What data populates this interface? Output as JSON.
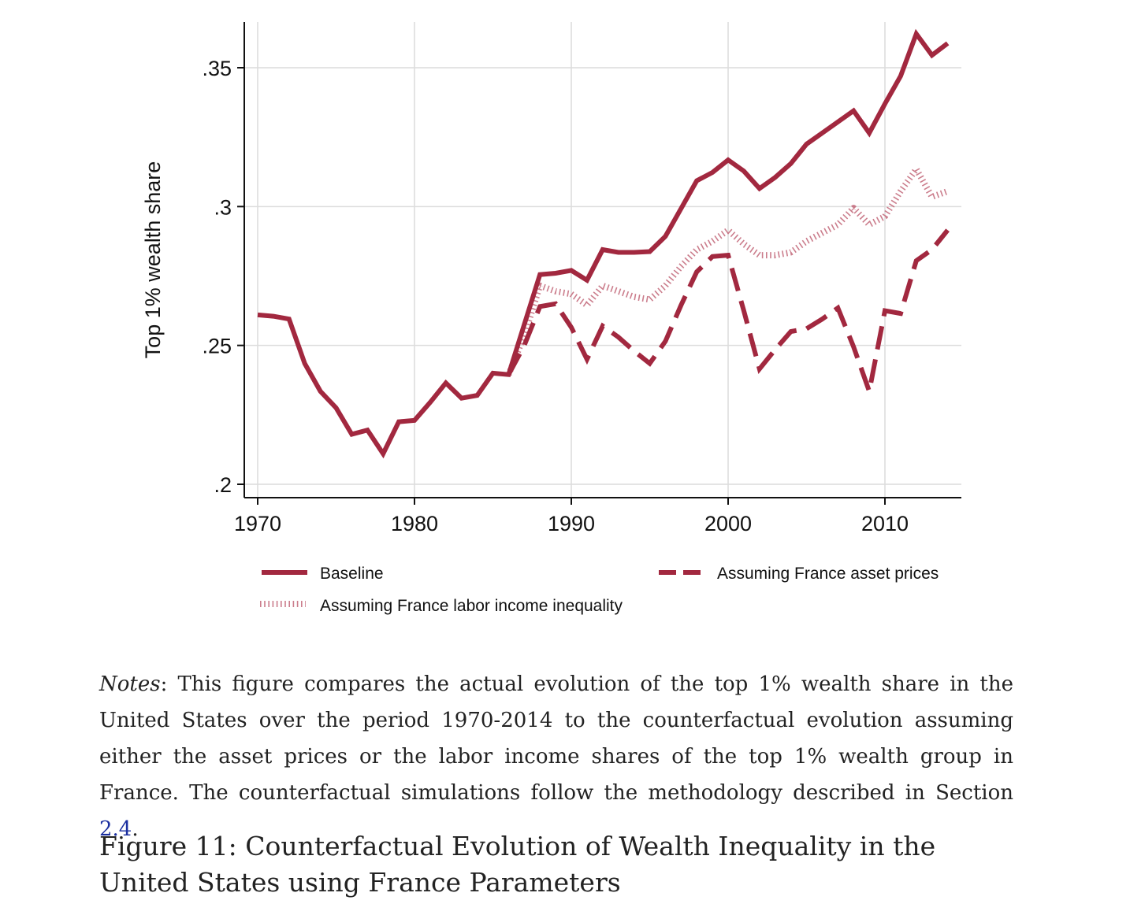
{
  "chart_data": {
    "type": "line",
    "title": "",
    "xlabel": "",
    "ylabel": "Top 1% wealth share",
    "xlim": [
      1970,
      2014.8
    ],
    "ylim": [
      0.195,
      0.367
    ],
    "x_ticks": [
      1970,
      1980,
      1990,
      2000,
      2010
    ],
    "y_ticks": [
      0.2,
      0.25,
      0.3,
      0.35
    ],
    "y_tick_labels": [
      ".2",
      ".25",
      ".3",
      ".35"
    ],
    "grid": true,
    "legend_position": "bottom",
    "series": [
      {
        "name": "Baseline",
        "style": "solid",
        "color": "#a2283f",
        "x": [
          1970,
          1971,
          1972,
          1973,
          1974,
          1975,
          1976,
          1977,
          1978,
          1979,
          1980,
          1981,
          1982,
          1983,
          1984,
          1985,
          1986,
          1987,
          1988,
          1989,
          1990,
          1991,
          1992,
          1993,
          1994,
          1995,
          1996,
          1997,
          1998,
          1999,
          2000,
          2001,
          2002,
          2003,
          2004,
          2005,
          2006,
          2007,
          2008,
          2009,
          2010,
          2011,
          2012,
          2013,
          2014
        ],
        "y": [
          0.261,
          0.2605,
          0.2595,
          0.2435,
          0.2335,
          0.2275,
          0.218,
          0.2195,
          0.211,
          0.2225,
          0.223,
          0.2295,
          0.2365,
          0.231,
          0.232,
          0.24,
          0.2395,
          0.2575,
          0.2755,
          0.276,
          0.277,
          0.2735,
          0.2845,
          0.2835,
          0.2835,
          0.2838,
          0.2893,
          0.2993,
          0.3093,
          0.3123,
          0.3168,
          0.3128,
          0.3065,
          0.3105,
          0.3155,
          0.3225,
          0.3265,
          0.3305,
          0.3345,
          0.3265,
          0.337,
          0.347,
          0.3622,
          0.3545,
          0.3588
        ]
      },
      {
        "name": "Assuming France asset prices",
        "style": "dashed",
        "color": "#a2283f",
        "x": [
          1986,
          1987,
          1988,
          1989,
          1990,
          1991,
          1992,
          1993,
          1994,
          1995,
          1996,
          1997,
          1998,
          1999,
          2000,
          2001,
          2002,
          2003,
          2004,
          2005,
          2006,
          2007,
          2008,
          2009,
          2010,
          2011,
          2012,
          2013,
          2014
        ],
        "y": [
          0.2395,
          0.25,
          0.264,
          0.265,
          0.2565,
          0.245,
          0.257,
          0.253,
          0.248,
          0.2435,
          0.2515,
          0.2645,
          0.2765,
          0.282,
          0.2825,
          0.2625,
          0.2415,
          0.2485,
          0.255,
          0.256,
          0.2595,
          0.2635,
          0.2495,
          0.2335,
          0.2625,
          0.2615,
          0.2805,
          0.2845,
          0.2915
        ]
      },
      {
        "name": "Assuming France labor income inequality",
        "style": "dotted",
        "color": "#c26678",
        "x": [
          1986,
          1987,
          1988,
          1989,
          1990,
          1991,
          1992,
          1993,
          1994,
          1995,
          1996,
          1997,
          1998,
          1999,
          2000,
          2001,
          2002,
          2003,
          2004,
          2005,
          2006,
          2007,
          2008,
          2009,
          2010,
          2011,
          2012,
          2013,
          2014
        ],
        "y": [
          0.2395,
          0.2535,
          0.2715,
          0.2695,
          0.2685,
          0.2645,
          0.2715,
          0.2695,
          0.2675,
          0.2665,
          0.2715,
          0.2785,
          0.2845,
          0.2875,
          0.2915,
          0.2865,
          0.2825,
          0.2825,
          0.2835,
          0.2875,
          0.2905,
          0.2935,
          0.2995,
          0.2935,
          0.2965,
          0.3055,
          0.3135,
          0.3035,
          0.3055
        ]
      }
    ]
  },
  "notes": {
    "label": "Notes",
    "text_before_ref": ": This figure compares the actual evolution of the top 1% wealth share in the United States over the period 1970-2014 to the counterfactual evolution assuming either the asset prices or the labor income shares of the top 1% wealth group in France. The counterfactual simulations follow the methodology described in Section ",
    "section_ref": "2.4",
    "text_after_ref": "."
  },
  "caption": "Figure 11: Counterfactual Evolution of Wealth Inequality in the United States using France Parameters"
}
